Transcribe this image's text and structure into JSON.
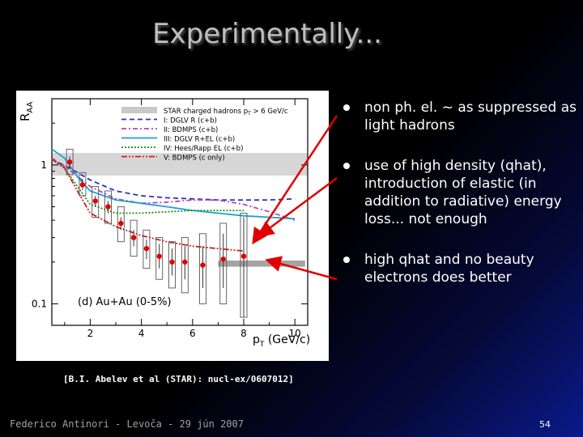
{
  "slide": {
    "title": "Experimentally...",
    "bullets": [
      "non ph. el. ~ as suppressed as light hadrons",
      "use of high density (qhat), introduction of elastic (in addition to radiative) energy loss... not enough",
      "high qhat and no beauty electrons does better"
    ],
    "reference": "[B.I. Abelev et al (STAR): nucl-ex/0607012]",
    "footer": "Federico Antinori - Levoča - 29 jún 2007",
    "page_number": "54",
    "colors": {
      "arrow": "#e00000",
      "data_points": "#e00000",
      "title": "#bfbfbf"
    }
  },
  "chart_data": {
    "type": "line",
    "ylabel": "R",
    "ylabel_sub": "AA",
    "xlabel": "p",
    "xlabel_sub": "T",
    "xlabel_unit": " (GeV/c)",
    "panel_label": "(d) Au+Au (0-5%)",
    "yscale": "log",
    "xlim": [
      0.5,
      10.5
    ],
    "ylim": [
      0.07,
      3.0
    ],
    "x_ticks": [
      2,
      4,
      6,
      8,
      10
    ],
    "x_tick_labels": [
      "2",
      "4",
      "6",
      "8",
      "10"
    ],
    "y_ticks": [
      0.1,
      1
    ],
    "y_tick_labels": [
      "0.1",
      "1"
    ],
    "legend": [
      {
        "label_main": "STAR charged hadrons p",
        "label_sub": "T",
        "label_tail": " > 6 GeV/c",
        "style": "band",
        "color": "#c8c8c8"
      },
      {
        "label": "I:   DGLV R (c+b)",
        "style": "dashed",
        "color": "#3030b0"
      },
      {
        "label": "II:  BDMPS (c+b)",
        "style": "dashdot",
        "color": "#c040c0"
      },
      {
        "label": "III: DGLV R+EL (c+b)",
        "style": "solid",
        "color": "#1f9fd0"
      },
      {
        "label": "IV: Hees/Rapp EL (c+b)",
        "style": "dotted",
        "color": "#109010"
      },
      {
        "label": "V:  BDMPS  (c only)",
        "style": "dashdotdot",
        "color": "#d02020"
      }
    ],
    "bands": [
      {
        "name": "charged hadrons",
        "y_low": 0.84,
        "y_high": 1.22,
        "color": "#c8c8c8"
      },
      {
        "name": "pi0",
        "x_start": 7.0,
        "x_end": 10.4,
        "y_low": 0.185,
        "y_high": 0.205,
        "color": "#9a9a9a"
      }
    ],
    "series": [
      {
        "name": "I: DGLV R (c+b)",
        "color": "#3030b0",
        "dash": "6,4",
        "x": [
          0.5,
          1.2,
          2.0,
          3.0,
          4.0,
          5.0,
          6.0,
          7.0,
          8.0,
          9.0,
          10.0
        ],
        "y": [
          1.1,
          0.95,
          0.78,
          0.65,
          0.6,
          0.58,
          0.57,
          0.56,
          0.56,
          0.56,
          0.57
        ]
      },
      {
        "name": "II: BDMPS (c+b)",
        "color": "#c040c0",
        "dash": "6,3,2,3",
        "x": [
          0.5,
          1.2,
          2.0,
          3.0,
          4.0,
          5.0,
          6.0,
          7.0,
          8.0,
          9.0,
          10.0
        ],
        "y": [
          1.12,
          0.92,
          0.7,
          0.57,
          0.53,
          0.54,
          0.56,
          0.56,
          0.52,
          0.46,
          0.4
        ]
      },
      {
        "name": "III: DGLV R+EL (c+b)",
        "color": "#1f9fd0",
        "dash": "",
        "x": [
          0.5,
          1.0,
          1.5,
          2.0,
          3.0,
          4.0,
          5.0,
          6.0,
          7.0,
          8.0,
          9.0,
          10.0
        ],
        "y": [
          1.3,
          1.12,
          0.82,
          0.65,
          0.56,
          0.53,
          0.5,
          0.47,
          0.45,
          0.43,
          0.42,
          0.41
        ]
      },
      {
        "name": "IV: Hees/Rapp EL (c+b)",
        "color": "#109010",
        "dash": "2,2",
        "x": [
          0.5,
          1.0,
          1.5,
          2.0,
          3.0,
          4.0,
          5.0,
          6.0,
          7.0,
          8.0
        ],
        "y": [
          1.1,
          0.95,
          0.7,
          0.52,
          0.45,
          0.45,
          0.46,
          0.47,
          0.47,
          0.47
        ]
      },
      {
        "name": "V: BDMPS (c only)",
        "color": "#d02020",
        "dash": "7,2,2,2,2,2",
        "x": [
          0.5,
          1.0,
          1.5,
          2.0,
          3.0,
          4.0,
          5.0,
          6.0,
          7.0,
          8.0
        ],
        "y": [
          1.1,
          0.95,
          0.65,
          0.45,
          0.36,
          0.31,
          0.28,
          0.26,
          0.25,
          0.24
        ]
      }
    ],
    "data_points": {
      "name": "non-photonic electrons",
      "color": "#e00000",
      "points": [
        {
          "x": 1.2,
          "y": 1.05,
          "stat_low": 0.95,
          "stat_high": 1.15,
          "sys_low": 0.85,
          "sys_high": 1.3
        },
        {
          "x": 1.7,
          "y": 0.72,
          "stat_low": 0.66,
          "stat_high": 0.79,
          "sys_low": 0.6,
          "sys_high": 0.88
        },
        {
          "x": 2.2,
          "y": 0.55,
          "stat_low": 0.5,
          "stat_high": 0.6,
          "sys_low": 0.42,
          "sys_high": 0.7
        },
        {
          "x": 2.7,
          "y": 0.5,
          "stat_low": 0.45,
          "stat_high": 0.55,
          "sys_low": 0.38,
          "sys_high": 0.65
        },
        {
          "x": 3.2,
          "y": 0.38,
          "stat_low": 0.34,
          "stat_high": 0.42,
          "sys_low": 0.28,
          "sys_high": 0.5
        },
        {
          "x": 3.7,
          "y": 0.3,
          "stat_low": 0.26,
          "stat_high": 0.34,
          "sys_low": 0.22,
          "sys_high": 0.4
        },
        {
          "x": 4.2,
          "y": 0.25,
          "stat_low": 0.21,
          "stat_high": 0.29,
          "sys_low": 0.18,
          "sys_high": 0.34
        },
        {
          "x": 4.7,
          "y": 0.22,
          "stat_low": 0.18,
          "stat_high": 0.27,
          "sys_low": 0.15,
          "sys_high": 0.3
        },
        {
          "x": 5.2,
          "y": 0.2,
          "stat_low": 0.16,
          "stat_high": 0.25,
          "sys_low": 0.13,
          "sys_high": 0.28
        },
        {
          "x": 5.7,
          "y": 0.2,
          "stat_low": 0.15,
          "stat_high": 0.26,
          "sys_low": 0.12,
          "sys_high": 0.3
        },
        {
          "x": 6.4,
          "y": 0.19,
          "stat_low": 0.13,
          "stat_high": 0.26,
          "sys_low": 0.1,
          "sys_high": 0.32
        },
        {
          "x": 7.2,
          "y": 0.21,
          "stat_low": 0.13,
          "stat_high": 0.32,
          "sys_low": 0.1,
          "sys_high": 0.38
        },
        {
          "x": 8.0,
          "y": 0.22,
          "stat_low": 0.08,
          "stat_high": 0.42,
          "sys_low": 0.08,
          "sys_high": 0.45
        }
      ]
    }
  }
}
